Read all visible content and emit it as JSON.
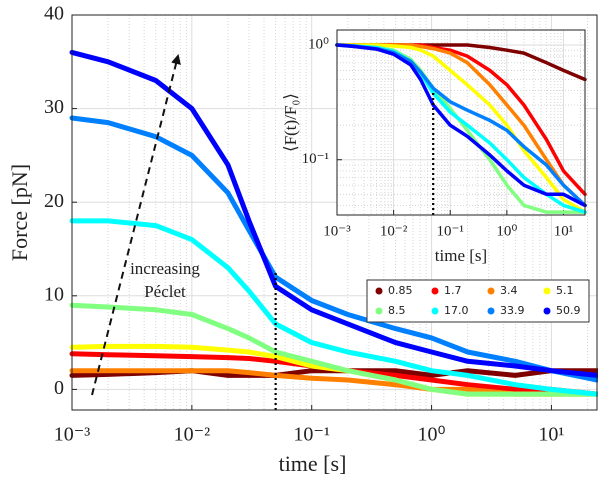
{
  "chart_data": [
    {
      "type": "line",
      "xlabel": "time [s]",
      "ylabel": "Force [pN]",
      "x_scale": "log",
      "xlim": [
        0.001,
        24
      ],
      "ylim": [
        -2.2,
        40
      ],
      "xticks": [
        {
          "value": 0.001,
          "label": "10⁻³"
        },
        {
          "value": 0.01,
          "label": "10⁻²"
        },
        {
          "value": 0.1,
          "label": "10⁻¹"
        },
        {
          "value": 1,
          "label": "10⁰"
        },
        {
          "value": 10,
          "label": "10¹"
        }
      ],
      "yticks": [
        0,
        10,
        20,
        30,
        40
      ],
      "grid": true,
      "legend": "lower right",
      "annotation": [
        "increasing",
        "Péclet"
      ],
      "vline": 0.05,
      "x": [
        0.001,
        0.002,
        0.005,
        0.01,
        0.02,
        0.03,
        0.05,
        0.1,
        0.2,
        0.5,
        1,
        2,
        5,
        10,
        24
      ],
      "series": [
        {
          "name": "0.85",
          "color": "#7f0000",
          "values": [
            1.5,
            1.6,
            1.8,
            2,
            1.5,
            1.5,
            1.5,
            2,
            2,
            2,
            1.5,
            2,
            1.5,
            2,
            2
          ]
        },
        {
          "name": "1.7",
          "color": "#ff0000",
          "values": [
            3.8,
            3.7,
            3.6,
            3.5,
            3.4,
            3.3,
            3,
            2.5,
            2,
            1.5,
            1,
            0.5,
            0,
            0,
            -0.5
          ]
        },
        {
          "name": "3.4",
          "color": "#ff8000",
          "values": [
            2,
            2,
            2,
            2,
            2,
            1.8,
            1.5,
            1.2,
            1,
            0.5,
            0,
            0,
            -0.5,
            -0.5,
            -0.5
          ]
        },
        {
          "name": "5.1",
          "color": "#ffff00",
          "values": [
            4.5,
            4.6,
            4.6,
            4.5,
            4.2,
            4,
            3.5,
            2.5,
            2,
            1,
            0,
            -0.5,
            -0.5,
            -0.5,
            -0.5
          ]
        },
        {
          "name": "8.5",
          "color": "#80ff80",
          "values": [
            9,
            8.8,
            8.5,
            8,
            6.5,
            5.5,
            4,
            3,
            2,
            1,
            0,
            -0.5,
            -0.5,
            -0.5,
            -0.5
          ]
        },
        {
          "name": "17.0",
          "color": "#00ffff",
          "values": [
            18,
            18,
            17.5,
            16,
            13,
            10.5,
            7,
            5,
            4,
            3,
            2,
            1.5,
            0.5,
            0,
            -0.5
          ]
        },
        {
          "name": "33.9",
          "color": "#0080ff",
          "values": [
            29,
            28.5,
            27,
            25,
            21,
            17,
            12,
            9.5,
            8,
            6.5,
            5.5,
            4,
            3,
            2,
            1
          ]
        },
        {
          "name": "50.9",
          "color": "#0000ff",
          "values": [
            36,
            35,
            33,
            30,
            24,
            18,
            11,
            8.5,
            7,
            5,
            4,
            3,
            2.5,
            2,
            1.5
          ]
        }
      ]
    },
    {
      "type": "line",
      "xlabel": "time [s]",
      "ylabel": "⟨F(t)/F₀⟩",
      "x_scale": "log",
      "y_scale": "log",
      "xlim": [
        0.001,
        24
      ],
      "ylim": [
        0.033,
        1.35
      ],
      "xticks": [
        {
          "value": 0.001,
          "label": "10⁻³"
        },
        {
          "value": 0.01,
          "label": "10⁻²"
        },
        {
          "value": 0.1,
          "label": "10⁻¹"
        },
        {
          "value": 1,
          "label": "10⁰"
        },
        {
          "value": 10,
          "label": "10¹"
        }
      ],
      "yticks": [
        {
          "value": 0.1,
          "label": "10⁻¹"
        },
        {
          "value": 1,
          "label": "10⁰"
        }
      ],
      "grid": true,
      "vline": 0.05,
      "x": [
        0.001,
        0.002,
        0.005,
        0.01,
        0.02,
        0.03,
        0.05,
        0.1,
        0.2,
        0.5,
        1,
        2,
        5,
        10,
        24
      ],
      "series": [
        {
          "color": "#7f0000",
          "values": [
            1,
            1,
            1,
            1,
            1,
            1,
            1,
            1,
            1,
            0.95,
            0.9,
            0.85,
            0.7,
            0.6,
            0.5
          ]
        },
        {
          "color": "#ff0000",
          "values": [
            1,
            1,
            1,
            1,
            1,
            1,
            0.95,
            0.9,
            0.8,
            0.6,
            0.45,
            0.3,
            0.15,
            0.08,
            0.05
          ]
        },
        {
          "color": "#ff8000",
          "values": [
            1,
            1,
            1,
            1,
            1,
            0.97,
            0.93,
            0.85,
            0.7,
            0.45,
            0.3,
            0.2,
            0.1,
            0.06,
            0.04
          ]
        },
        {
          "color": "#ffff00",
          "values": [
            1,
            1,
            1,
            0.98,
            0.95,
            0.9,
            0.8,
            0.6,
            0.45,
            0.3,
            0.2,
            0.12,
            0.07,
            0.045,
            0.035
          ]
        },
        {
          "color": "#80ff80",
          "values": [
            1,
            0.98,
            0.95,
            0.9,
            0.75,
            0.6,
            0.42,
            0.28,
            0.18,
            0.1,
            0.06,
            0.04,
            0.035,
            0.035,
            0.035
          ]
        },
        {
          "color": "#00ffff",
          "values": [
            1,
            0.98,
            0.95,
            0.88,
            0.72,
            0.57,
            0.38,
            0.26,
            0.2,
            0.14,
            0.1,
            0.07,
            0.05,
            0.04,
            0.035
          ]
        },
        {
          "color": "#0080ff",
          "values": [
            1,
            0.98,
            0.93,
            0.86,
            0.72,
            0.58,
            0.42,
            0.32,
            0.27,
            0.22,
            0.18,
            0.13,
            0.09,
            0.06,
            0.04
          ]
        },
        {
          "color": "#0000ff",
          "values": [
            1,
            0.97,
            0.92,
            0.83,
            0.67,
            0.5,
            0.3,
            0.2,
            0.16,
            0.11,
            0.08,
            0.06,
            0.05,
            0.05,
            0.04
          ]
        }
      ]
    }
  ]
}
